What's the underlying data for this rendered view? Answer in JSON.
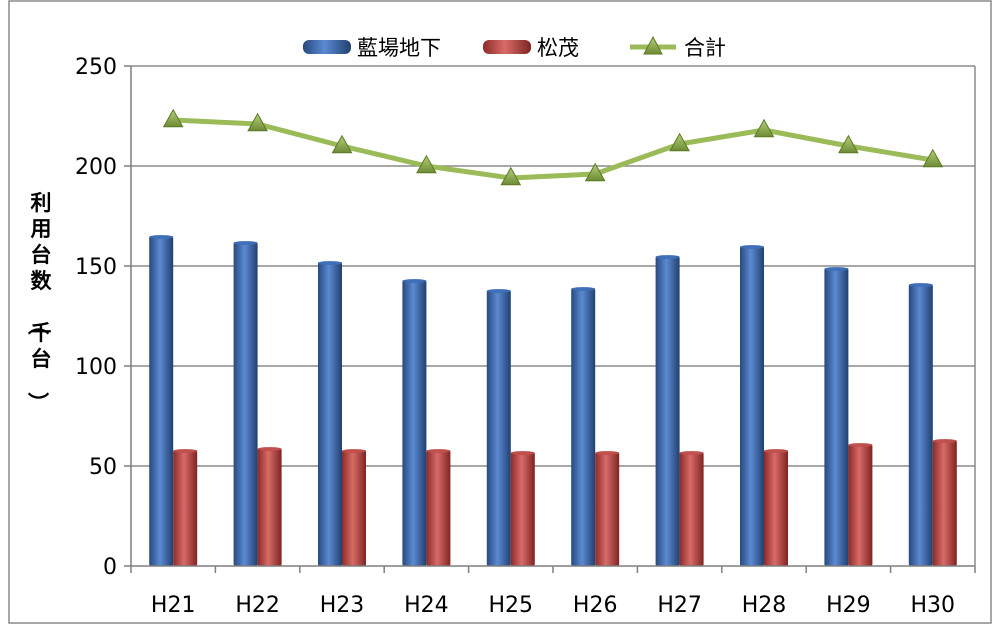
{
  "chart_data": {
    "type": "bar",
    "categories": [
      "H21",
      "H22",
      "H23",
      "H24",
      "H25",
      "H26",
      "H27",
      "H28",
      "H29",
      "H30"
    ],
    "series": [
      {
        "name": "藍場地下",
        "kind": "bar",
        "color": "#3f6fb8",
        "values": [
          165,
          162,
          152,
          143,
          138,
          139,
          155,
          160,
          149,
          141
        ]
      },
      {
        "name": "松茂",
        "kind": "bar",
        "color": "#c0504d",
        "values": [
          58,
          59,
          58,
          58,
          57,
          57,
          57,
          58,
          61,
          63
        ]
      },
      {
        "name": "合計",
        "kind": "line",
        "color": "#9bbb59",
        "marker": "triangle",
        "values": [
          223,
          221,
          210,
          200,
          194,
          196,
          211,
          218,
          210,
          203
        ]
      }
    ],
    "ylabel": "利用台数（千台）",
    "ylim": [
      0,
      250
    ],
    "yticks": [
      "0",
      "50",
      "100",
      "150",
      "200",
      "250"
    ],
    "ytick_values": [
      0,
      50,
      100,
      150,
      200,
      250
    ],
    "grid": true,
    "legend_position": "top"
  }
}
